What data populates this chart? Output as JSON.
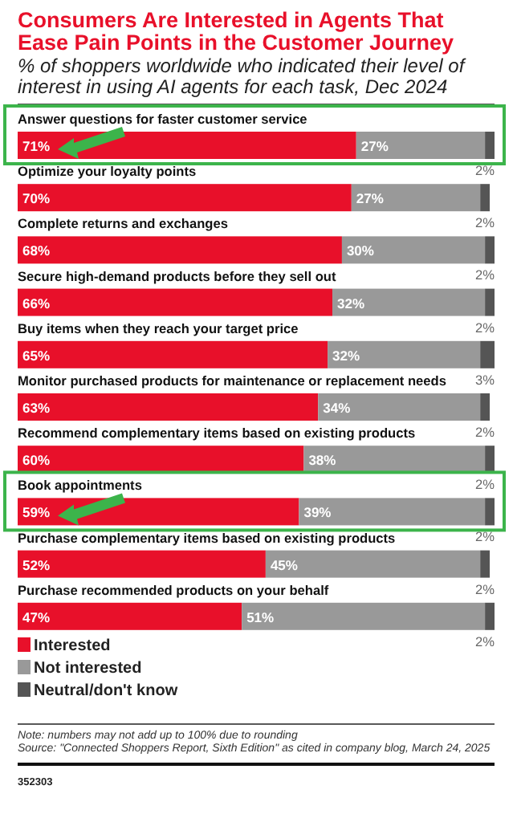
{
  "chart_data": {
    "type": "bar",
    "orientation": "horizontal",
    "stacked": true,
    "title": "Consumers Are Interested in Agents That Ease Pain Points in the Customer Journey",
    "subtitle": "% of shoppers worldwide who indicated their level of interest in using AI agents for each task, Dec 2024",
    "categories": [
      "Answer questions for faster customer service",
      "Optimize your loyalty points",
      "Complete returns and exchanges",
      "Secure high-demand products before they sell out",
      "Buy items when they reach your target price",
      "Monitor purchased products for maintenance or replacement needs",
      "Recommend complementary items based on existing products",
      "Book appointments",
      "Purchase complementary items based on existing products",
      "Purchase recommended products on your behalf"
    ],
    "series": [
      {
        "name": "Interested",
        "color": "#e8102a",
        "values": [
          71,
          70,
          68,
          66,
          65,
          63,
          60,
          59,
          52,
          47
        ],
        "value_labels": [
          "71%",
          "70%",
          "68%",
          "66%",
          "65%",
          "63%",
          "60%",
          "59%",
          "52%",
          "47%"
        ]
      },
      {
        "name": "Not interested",
        "color": "#999999",
        "values": [
          27,
          27,
          30,
          32,
          32,
          34,
          38,
          39,
          45,
          51
        ],
        "value_labels": [
          "27%",
          "27%",
          "30%",
          "32%",
          "32%",
          "34%",
          "38%",
          "39%",
          "45%",
          "51%"
        ]
      },
      {
        "name": "Neutral/don't know",
        "color": "#555555",
        "values": [
          2,
          2,
          2,
          2,
          3,
          2,
          2,
          2,
          2,
          2
        ],
        "value_labels": [
          "2%",
          "2%",
          "2%",
          "2%",
          "3%",
          "2%",
          "2%",
          "2%",
          "2%",
          "2%"
        ]
      }
    ],
    "xlim": [
      0,
      100
    ],
    "tick_labels": false,
    "legend": "bottom",
    "annotations": [
      "Note: numbers may not add up to 100% due to rounding",
      "Source: \"Connected Shoppers Report, Sixth Edition\" as cited in company blog, March 24, 2025",
      "352303"
    ]
  }
}
